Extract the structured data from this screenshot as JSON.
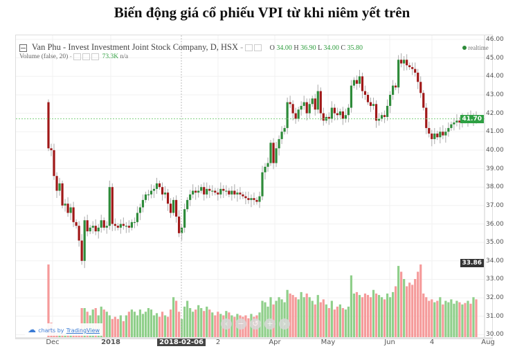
{
  "title": "Biến động giá cổ phiếu VPI từ khi niêm yết trên",
  "header": {
    "symbol_line": "Van Phu - Invest Investment Joint Stock Company, D, HSX",
    "o_label": "O",
    "o": "34.00",
    "h_label": "H",
    "h": "36.90",
    "l_label": "L",
    "l": "34.00",
    "c_label": "C",
    "c": "35.80",
    "realtime": "realtime",
    "volume_line": "Volume (false, 20)",
    "volume_value": "73.3K",
    "volume_na": "n/a"
  },
  "branding": {
    "prefix": "charts by",
    "link": "TradingView"
  },
  "nav_buttons": [
    "‹",
    "−",
    "↺",
    "+",
    "›"
  ],
  "colors": {
    "up": "#2e8b3a",
    "down": "#a01818",
    "vol_up": "#8fcf8a",
    "vol_down": "#f59a9a",
    "last_price": "#2ea043",
    "crosshair_tag": "#333333"
  },
  "chart_data": {
    "type": "candlestick",
    "ylim": [
      30,
      46
    ],
    "y_ticks": [
      "46.00",
      "45.00",
      "44.00",
      "43.00",
      "42.00",
      "41.00",
      "40.00",
      "39.00",
      "38.00",
      "37.00",
      "36.00",
      "35.00",
      "34.00",
      "33.00",
      "32.00",
      "31.00",
      "30.00"
    ],
    "x_ticks": [
      "Dec",
      "2018",
      "2018-02-06",
      "2",
      "Apr",
      "May",
      "Jun",
      "4",
      "Aug"
    ],
    "last_price": "41.70",
    "crosshair_price": "33.86",
    "first_open": 42.6,
    "close": [
      40.1,
      40.0,
      38.6,
      37.8,
      38.2,
      37.0,
      37.1,
      36.6,
      36.9,
      36.1,
      35.9,
      35.1,
      34.0,
      36.2,
      35.6,
      35.8,
      35.9,
      35.6,
      35.8,
      36.2,
      35.8,
      35.9,
      38.0,
      36.0,
      35.9,
      35.8,
      36.0,
      35.9,
      35.9,
      35.8,
      36.1,
      36.1,
      36.6,
      36.9,
      37.3,
      37.6,
      37.6,
      37.8,
      37.9,
      38.2,
      38.0,
      37.6,
      37.7,
      37.1,
      36.6,
      37.3,
      36.4,
      35.5,
      35.8,
      36.8,
      37.3,
      37.6,
      37.8,
      37.7,
      37.8,
      38.0,
      37.6,
      37.9,
      37.8,
      37.8,
      37.7,
      37.6,
      37.9,
      37.8,
      37.8,
      37.6,
      37.8,
      37.6,
      37.7,
      37.6,
      37.5,
      37.4,
      37.3,
      37.4,
      37.3,
      37.2,
      37.5,
      38.8,
      39.1,
      39.3,
      40.4,
      39.3,
      40.1,
      40.6,
      41.0,
      41.2,
      42.6,
      42.5,
      42.0,
      41.7,
      42.2,
      42.4,
      42.6,
      42.0,
      42.5,
      42.8,
      42.2,
      43.2,
      42.0,
      41.6,
      41.8,
      41.7,
      42.3,
      42.0,
      41.9,
      42.1,
      41.7,
      41.9,
      42.3,
      43.5,
      43.8,
      43.6,
      44.0,
      43.2,
      43.0,
      42.6,
      42.4,
      42.5,
      41.6,
      41.7,
      41.9,
      41.8,
      42.4,
      43.0,
      43.5,
      43.4,
      44.9,
      44.7,
      44.9,
      44.6,
      44.5,
      44.4,
      44.2,
      43.7,
      43.1,
      42.3,
      41.2,
      40.9,
      40.6,
      40.9,
      40.7,
      41.0,
      40.8,
      41.0,
      41.2,
      41.4,
      41.5,
      41.6,
      41.5,
      41.7,
      41.6,
      41.8,
      41.7,
      41.8,
      41.7
    ],
    "volume": [
      100,
      20,
      8,
      6,
      6,
      5,
      5,
      5,
      5,
      5,
      5,
      8,
      40,
      40,
      35,
      30,
      38,
      40,
      30,
      42,
      38,
      35,
      30,
      25,
      28,
      25,
      30,
      22,
      30,
      35,
      38,
      35,
      30,
      38,
      32,
      35,
      40,
      38,
      30,
      33,
      28,
      35,
      30,
      28,
      38,
      55,
      50,
      35,
      25,
      42,
      50,
      40,
      35,
      38,
      44,
      40,
      36,
      42,
      38,
      34,
      30,
      35,
      32,
      30,
      36,
      34,
      30,
      28,
      32,
      30,
      28,
      30,
      26,
      32,
      28,
      30,
      34,
      50,
      48,
      42,
      55,
      45,
      50,
      55,
      52,
      48,
      65,
      60,
      58,
      55,
      52,
      62,
      55,
      60,
      55,
      50,
      45,
      58,
      48,
      52,
      45,
      40,
      50,
      38,
      42,
      45,
      40,
      38,
      42,
      85,
      60,
      62,
      58,
      55,
      60,
      58,
      55,
      65,
      60,
      58,
      55,
      52,
      60,
      55,
      62,
      70,
      98,
      90,
      80,
      70,
      75,
      72,
      80,
      90,
      100,
      60,
      55,
      50,
      52,
      48,
      50,
      55,
      45,
      50,
      48,
      52,
      46,
      50,
      48,
      45,
      47,
      50,
      46,
      55,
      52
    ]
  }
}
